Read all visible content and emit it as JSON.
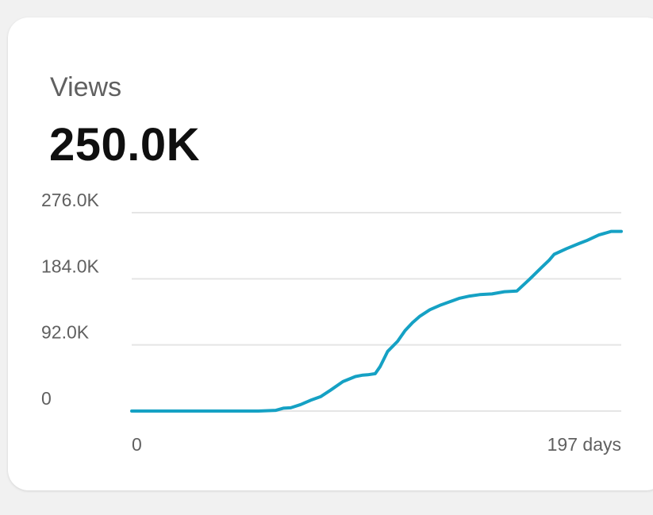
{
  "metric": {
    "label": "Views",
    "value": "250.0K"
  },
  "colors": {
    "line": "#15a1c4",
    "grid": "#e5e5e5",
    "tick_text": "#606060"
  },
  "chart_data": {
    "type": "line",
    "title": "",
    "xlabel": "",
    "ylabel": "",
    "xlim": [
      0,
      197
    ],
    "ylim": [
      0,
      276000
    ],
    "y_ticks": [
      {
        "value": 0,
        "label": "0"
      },
      {
        "value": 92000,
        "label": "92.0K"
      },
      {
        "value": 184000,
        "label": "184.0K"
      },
      {
        "value": 276000,
        "label": "276.0K"
      }
    ],
    "x_ticks": [
      {
        "value": 0,
        "label": "0"
      },
      {
        "value": 197,
        "label": "197 days"
      }
    ],
    "grid": true,
    "legend": "none",
    "series": [
      {
        "x": [
          0,
          20,
          40,
          51,
          55,
          58,
          61,
          64,
          68,
          72,
          76,
          80,
          85,
          90,
          93,
          95,
          98,
          100,
          103,
          107,
          110,
          113,
          116,
          120,
          124,
          128,
          132,
          136,
          140,
          145,
          150,
          155,
          160,
          165,
          168,
          170,
          175,
          180,
          183,
          188,
          193,
          197
        ],
        "values": [
          0,
          0,
          0,
          0,
          500,
          1000,
          4000,
          4500,
          9000,
          15000,
          20000,
          29000,
          41000,
          48000,
          50000,
          50500,
          52000,
          62000,
          83000,
          97000,
          112000,
          123000,
          132000,
          141000,
          147000,
          152000,
          157000,
          160000,
          162000,
          163000,
          166000,
          167000,
          183000,
          200000,
          210000,
          218000,
          226000,
          233000,
          237000,
          245000,
          250000,
          250000
        ]
      }
    ]
  }
}
